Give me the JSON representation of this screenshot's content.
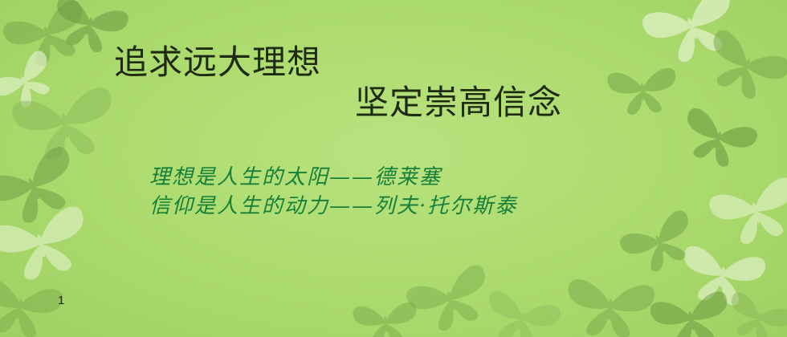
{
  "slide": {
    "title_lines": [
      "追求远大理想",
      "坚定崇高信念"
    ],
    "quotes": [
      "理想是人生的太阳——德莱塞",
      "信仰是人生的动力——列夫·托尔斯泰"
    ],
    "page_number": "1"
  },
  "colors": {
    "background": "#aedc70",
    "title_text": "#1e2a12",
    "quote_text": "#16803a",
    "butterfly_dark": "#6f9e45",
    "butterfly_light": "#dff2c4"
  },
  "decoration": {
    "background_motif": "butterfly-icon"
  }
}
